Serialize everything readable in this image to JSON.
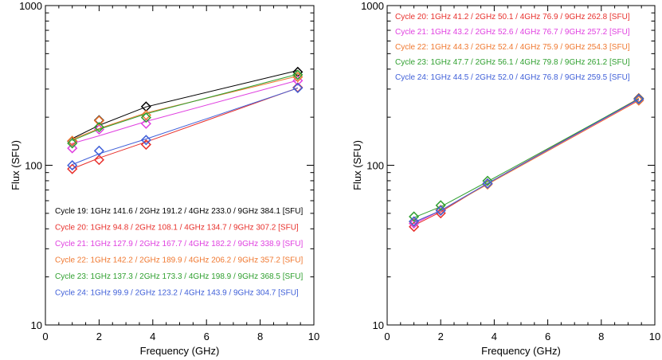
{
  "chart_data": [
    {
      "type": "scatter",
      "panel": "left",
      "xlabel": "Frequency (GHz)",
      "ylabel": "Flux (SFU)",
      "xlim": [
        0,
        10
      ],
      "ylim": [
        10,
        1000
      ],
      "yscale": "log",
      "xticks": [
        "0",
        "2",
        "4",
        "6",
        "8",
        "10"
      ],
      "yticks": [
        "10",
        "100",
        "1000"
      ],
      "x": [
        1,
        2,
        3.75,
        9.4
      ],
      "legend_position": "bottom-left",
      "series": [
        {
          "name": "Cycle 19",
          "color": "#000000",
          "values": [
            141.6,
            191.2,
            233.0,
            384.1
          ],
          "fit": [
            147,
            178,
            232,
            392
          ],
          "legend": "Cycle 19: 1GHz 141.6 / 2GHz 191.2 / 4GHz 233.0 / 9GHz  384.1 [SFU]"
        },
        {
          "name": "Cycle 20",
          "color": "#e8302c",
          "values": [
            94.8,
            108.1,
            134.7,
            307.2
          ],
          "fit": [
            95,
            111,
            140,
            305
          ],
          "legend": "Cycle 20: 1GHz  94.8 / 2GHz 108.1 / 4GHz 134.7 / 9GHz  307.2 [SFU]"
        },
        {
          "name": "Cycle 21",
          "color": "#e040e0",
          "values": [
            127.9,
            167.7,
            182.2,
            338.9
          ],
          "fit": [
            137,
            153,
            188,
            340
          ],
          "legend": "Cycle 21: 1GHz 127.9 / 2GHz 167.7 / 4GHz 182.2 / 9GHz  338.9 [SFU]"
        },
        {
          "name": "Cycle 22",
          "color": "#f07830",
          "values": [
            142.2,
            189.9,
            206.2,
            357.2
          ],
          "fit": [
            145,
            170,
            213,
            362
          ],
          "legend": "Cycle 22: 1GHz 142.2 / 2GHz 189.9 / 4GHz 206.2 / 9GHz  357.2 [SFU]"
        },
        {
          "name": "Cycle 23",
          "color": "#30a030",
          "values": [
            137.3,
            173.3,
            198.9,
            368.5
          ],
          "fit": [
            143,
            168,
            210,
            372
          ],
          "legend": "Cycle 23: 1GHz 137.3 / 2GHz 173.3 / 4GHz 198.9 / 9GHz  368.5 [SFU]"
        },
        {
          "name": "Cycle 24",
          "color": "#4060d8",
          "values": [
            99.9,
            123.2,
            143.9,
            304.7
          ],
          "fit": [
            101,
            118,
            146,
            304
          ],
          "legend": "Cycle 24: 1GHz  99.9 / 2GHz 123.2 / 4GHz 143.9 / 9GHz  304.7 [SFU]"
        }
      ]
    },
    {
      "type": "scatter",
      "panel": "right",
      "xlabel": "Frequency (GHz)",
      "ylabel": "Flux (SFU)",
      "xlim": [
        0,
        10
      ],
      "ylim": [
        10,
        1000
      ],
      "yscale": "log",
      "xticks": [
        "0",
        "2",
        "4",
        "6",
        "8",
        "10"
      ],
      "yticks": [
        "10",
        "100",
        "1000"
      ],
      "x": [
        1,
        2,
        3.75,
        9.4
      ],
      "legend_position": "top-left",
      "series": [
        {
          "name": "Cycle 20",
          "color": "#e8302c",
          "values": [
            41.2,
            50.1,
            76.9,
            262.8
          ],
          "fit": [
            42,
            51,
            77,
            262
          ],
          "legend": "Cycle 20: 1GHz 41.2 / 2GHz  50.1 / 4GHz  76.9 / 9GHz  262.8 [SFU]"
        },
        {
          "name": "Cycle 21",
          "color": "#e040e0",
          "values": [
            43.2,
            52.6,
            76.7,
            257.2
          ],
          "fit": [
            43,
            52,
            77,
            257
          ],
          "legend": "Cycle 21: 1GHz 43.2 / 2GHz  52.6 / 4GHz  76.7 / 9GHz  257.2 [SFU]"
        },
        {
          "name": "Cycle 22",
          "color": "#f07830",
          "values": [
            44.3,
            52.4,
            75.9,
            254.3
          ],
          "fit": [
            44,
            52,
            76,
            254
          ],
          "legend": "Cycle 22: 1GHz 44.3 / 2GHz  52.4 / 4GHz  75.9 / 9GHz  254.3 [SFU]"
        },
        {
          "name": "Cycle 23",
          "color": "#30a030",
          "values": [
            47.7,
            56.1,
            79.8,
            261.2
          ],
          "fit": [
            47,
            55,
            79,
            261
          ],
          "legend": "Cycle 23: 1GHz 47.7 / 2GHz  56.1 / 4GHz  79.8 / 9GHz  261.2 [SFU]"
        },
        {
          "name": "Cycle 24",
          "color": "#4060d8",
          "values": [
            44.5,
            52.0,
            76.8,
            259.5
          ],
          "fit": [
            44,
            52,
            77,
            259
          ],
          "legend": "Cycle 24: 1GHz 44.5 / 2GHz  52.0 / 4GHz  76.8 / 9GHz  259.5 [SFU]"
        }
      ]
    }
  ]
}
